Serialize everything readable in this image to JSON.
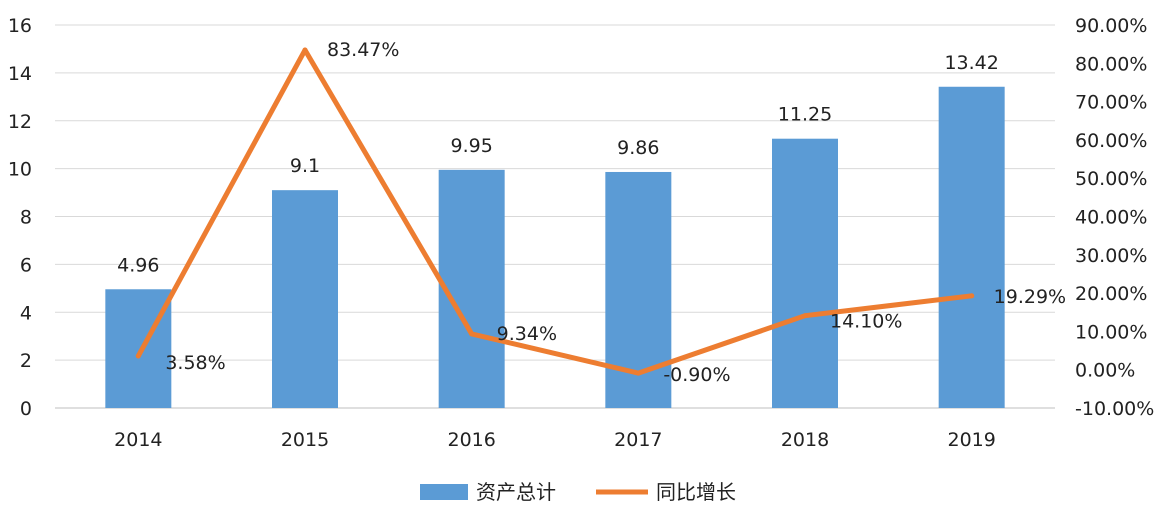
{
  "chart_data": {
    "type": "bar",
    "categories": [
      "2014",
      "2015",
      "2016",
      "2017",
      "2018",
      "2019"
    ],
    "series": [
      {
        "name": "资产总计",
        "type": "bar",
        "axis": "left",
        "color": "#5B9BD5",
        "values": [
          4.96,
          9.1,
          9.95,
          9.86,
          11.25,
          13.42
        ],
        "labels": [
          "4.96",
          "9.1",
          "9.95",
          "9.86",
          "11.25",
          "13.42"
        ]
      },
      {
        "name": "同比增长",
        "type": "line",
        "axis": "right",
        "color": "#ED7D31",
        "values": [
          3.58,
          83.47,
          9.34,
          -0.9,
          14.1,
          19.29
        ],
        "labels": [
          "3.58%",
          "83.47%",
          "9.34%",
          "-0.90%",
          "14.10%",
          "19.29%"
        ]
      }
    ],
    "y_left": {
      "ylim": [
        0,
        16
      ],
      "ticks": [
        "0",
        "2",
        "4",
        "6",
        "8",
        "10",
        "12",
        "14",
        "16"
      ],
      "tick_values": [
        0,
        2,
        4,
        6,
        8,
        10,
        12,
        14,
        16
      ]
    },
    "y_right": {
      "ylim": [
        -10,
        90
      ],
      "ticks": [
        "-10.00%",
        "0.00%",
        "10.00%",
        "20.00%",
        "30.00%",
        "40.00%",
        "50.00%",
        "60.00%",
        "70.00%",
        "80.00%",
        "90.00%"
      ],
      "tick_values": [
        -10,
        0,
        10,
        20,
        30,
        40,
        50,
        60,
        70,
        80,
        90
      ]
    },
    "grid": true,
    "legend": "bottom-center",
    "title": "",
    "xlabel": "",
    "ylabel": ""
  }
}
